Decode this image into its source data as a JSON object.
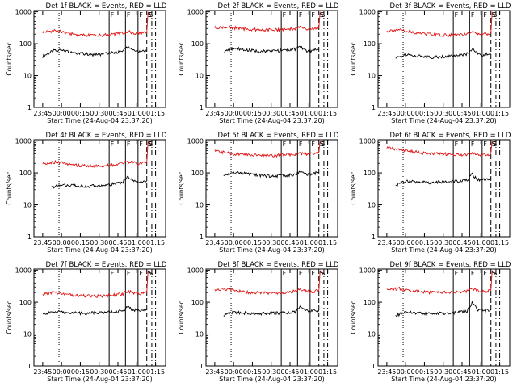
{
  "figure": {
    "background": "#ffffff",
    "plot_background": "#ffffff",
    "ink": "#000000",
    "events_color": "#000000",
    "lld_color": "#e01010"
  },
  "panel_labels": {
    "ylabel": "Counts/sec",
    "xlabel": "Start Time (24-Aug-04 23:37:20)",
    "marker_F": "F",
    "marker_S": "S",
    "marker_S_overlay": "S"
  },
  "chart_data": [
    {
      "type": "line",
      "title": "Det 1f BLACK = Events, RED = LLD",
      "xlabel": "Start Time (24-Aug-04 23:37:20)",
      "ylabel": "Counts/sec",
      "x_ticks": [
        "23:45",
        "00:00",
        "00:15",
        "00:30",
        "00:45",
        "01:00",
        "01:15"
      ],
      "xlim_min": [
        -7,
        98
      ],
      "y_scale": "log",
      "y_ticks": [
        "1",
        "10",
        "100",
        "1000"
      ],
      "ylim": [
        1,
        1100
      ],
      "markers": {
        "dotted_min": 13,
        "F_min": [
          53,
          66,
          76
        ],
        "S_min": 83,
        "dash_min": [
          87,
          90,
          98
        ]
      },
      "series": [
        {
          "name": "Events",
          "color": "#000000",
          "t_min": [
            0,
            10,
            20,
            30,
            40,
            50,
            55,
            60,
            64,
            68,
            72,
            76,
            80,
            83
          ],
          "values": [
            40,
            62,
            58,
            50,
            46,
            48,
            52,
            55,
            60,
            85,
            65,
            55,
            58,
            60
          ]
        },
        {
          "name": "LLD",
          "color": "#e01010",
          "t_min": [
            0,
            10,
            20,
            30,
            40,
            50,
            55,
            60,
            64,
            68,
            72,
            76,
            80,
            83,
            84
          ],
          "values": [
            230,
            260,
            210,
            190,
            185,
            190,
            200,
            210,
            215,
            240,
            220,
            210,
            215,
            220,
            1000
          ]
        }
      ]
    },
    {
      "type": "line",
      "title": "Det 2f BLACK = Events, RED = LLD",
      "xlabel": "Start Time (24-Aug-04 23:37:20)",
      "ylabel": "Counts/sec",
      "x_ticks": [
        "23:45",
        "00:00",
        "00:15",
        "00:30",
        "00:45",
        "01:00",
        "01:15"
      ],
      "xlim_min": [
        -7,
        98
      ],
      "y_scale": "log",
      "y_ticks": [
        "1",
        "10",
        "100",
        "1000"
      ],
      "ylim": [
        1,
        1100
      ],
      "markers": {
        "dotted_min": 13,
        "F_min": [
          53,
          66,
          76
        ],
        "S_min": 83,
        "dash_min": [
          87,
          90,
          98
        ]
      },
      "series": [
        {
          "name": "Events",
          "color": "#000000",
          "t_min": [
            7,
            15,
            25,
            35,
            45,
            55,
            60,
            64,
            68,
            72,
            76,
            80,
            83
          ],
          "values": [
            55,
            72,
            65,
            58,
            60,
            62,
            66,
            68,
            78,
            62,
            60,
            64,
            66
          ]
        },
        {
          "name": "LLD",
          "color": "#e01010",
          "t_min": [
            0,
            10,
            20,
            30,
            40,
            50,
            55,
            60,
            64,
            68,
            72,
            76,
            80,
            83,
            84
          ],
          "values": [
            320,
            340,
            300,
            280,
            270,
            275,
            285,
            290,
            300,
            320,
            300,
            290,
            300,
            310,
            1000
          ]
        }
      ]
    },
    {
      "type": "line",
      "title": "Det 3f BLACK = Events, RED = LLD",
      "xlabel": "Start Time (24-Aug-04 23:37:20)",
      "ylabel": "Counts/sec",
      "x_ticks": [
        "23:45",
        "00:00",
        "00:15",
        "00:30",
        "00:45",
        "01:00",
        "01:15"
      ],
      "xlim_min": [
        -7,
        98
      ],
      "y_scale": "log",
      "y_ticks": [
        "1",
        "10",
        "100",
        "1000"
      ],
      "ylim": [
        1,
        1100
      ],
      "markers": {
        "dotted_min": 13,
        "F_min": [
          53,
          66,
          76
        ],
        "S_min": 83,
        "dash_min": [
          87,
          90,
          98
        ]
      },
      "series": [
        {
          "name": "Events",
          "color": "#000000",
          "t_min": [
            7,
            15,
            25,
            35,
            45,
            55,
            60,
            64,
            68,
            72,
            76,
            80,
            83
          ],
          "values": [
            35,
            45,
            42,
            38,
            40,
            42,
            45,
            48,
            70,
            50,
            45,
            48,
            50
          ]
        },
        {
          "name": "LLD",
          "color": "#e01010",
          "t_min": [
            0,
            10,
            20,
            30,
            40,
            50,
            55,
            60,
            64,
            68,
            72,
            76,
            80,
            83,
            84
          ],
          "values": [
            250,
            280,
            230,
            200,
            190,
            185,
            190,
            195,
            200,
            230,
            210,
            200,
            205,
            215,
            1000
          ]
        }
      ]
    },
    {
      "type": "line",
      "title": "Det 4f BLACK = Events, RED = LLD",
      "xlabel": "Start Time (24-Aug-04 23:37:20)",
      "ylabel": "Counts/sec",
      "x_ticks": [
        "23:45",
        "00:00",
        "00:15",
        "00:30",
        "00:45",
        "01:00",
        "01:15"
      ],
      "xlim_min": [
        -7,
        98
      ],
      "y_scale": "log",
      "y_ticks": [
        "1",
        "10",
        "100",
        "1000"
      ],
      "ylim": [
        1,
        1100
      ],
      "markers": {
        "dotted_min": 13,
        "F_min": [
          53,
          66,
          76
        ],
        "S_min": 83,
        "dash_min": [
          87,
          90,
          98
        ]
      },
      "series": [
        {
          "name": "Events",
          "color": "#000000",
          "t_min": [
            7,
            15,
            25,
            35,
            45,
            55,
            60,
            64,
            68,
            72,
            76,
            80,
            83
          ],
          "values": [
            35,
            42,
            40,
            38,
            40,
            44,
            48,
            52,
            80,
            55,
            50,
            52,
            55
          ]
        },
        {
          "name": "LLD",
          "color": "#e01010",
          "t_min": [
            0,
            10,
            20,
            30,
            40,
            50,
            55,
            60,
            64,
            68,
            72,
            76,
            80,
            83,
            84
          ],
          "values": [
            200,
            220,
            190,
            170,
            165,
            170,
            180,
            190,
            200,
            230,
            210,
            195,
            200,
            210,
            1000
          ]
        }
      ]
    },
    {
      "type": "line",
      "title": "Det 5f BLACK = Events, RED = LLD",
      "xlabel": "Start Time (24-Aug-04 23:37:20)",
      "ylabel": "Counts/sec",
      "x_ticks": [
        "23:45",
        "00:00",
        "00:15",
        "00:30",
        "00:45",
        "01:00",
        "01:15"
      ],
      "xlim_min": [
        -7,
        98
      ],
      "y_scale": "log",
      "y_ticks": [
        "1",
        "10",
        "100",
        "1000"
      ],
      "ylim": [
        1,
        1100
      ],
      "markers": {
        "dotted_min": 13,
        "F_min": [
          53,
          66,
          76
        ],
        "S_min": 83,
        "dash_min": [
          87,
          90,
          98
        ]
      },
      "series": [
        {
          "name": "Events",
          "color": "#000000",
          "t_min": [
            7,
            15,
            25,
            35,
            45,
            55,
            60,
            64,
            68,
            72,
            76,
            80,
            83
          ],
          "values": [
            80,
            105,
            95,
            85,
            80,
            82,
            86,
            90,
            110,
            95,
            90,
            98,
            105
          ]
        },
        {
          "name": "LLD",
          "color": "#e01010",
          "t_min": [
            0,
            10,
            20,
            30,
            40,
            50,
            55,
            60,
            64,
            68,
            72,
            76,
            80,
            83,
            84
          ],
          "values": [
            480,
            420,
            380,
            360,
            350,
            360,
            370,
            380,
            390,
            420,
            400,
            390,
            395,
            410,
            1000
          ]
        }
      ]
    },
    {
      "type": "line",
      "title": "Det 6f BLACK = Events, RED = LLD",
      "xlabel": "Start Time (24-Aug-04 23:37:20)",
      "ylabel": "Counts/sec",
      "x_ticks": [
        "23:45",
        "00:00",
        "00:15",
        "00:30",
        "00:45",
        "01:00",
        "01:15"
      ],
      "xlim_min": [
        -7,
        98
      ],
      "y_scale": "log",
      "y_ticks": [
        "1",
        "10",
        "100",
        "1000"
      ],
      "ylim": [
        1,
        1100
      ],
      "markers": {
        "dotted_min": 13,
        "F_min": [
          53,
          66,
          76
        ],
        "S_min": 83,
        "dash_min": [
          87,
          90,
          98
        ]
      },
      "series": [
        {
          "name": "Events",
          "color": "#000000",
          "t_min": [
            7,
            15,
            25,
            35,
            45,
            55,
            60,
            64,
            68,
            72,
            76,
            80,
            83
          ],
          "values": [
            40,
            55,
            52,
            50,
            52,
            55,
            58,
            60,
            90,
            65,
            60,
            62,
            68
          ]
        },
        {
          "name": "LLD",
          "color": "#e01010",
          "t_min": [
            0,
            10,
            20,
            30,
            40,
            50,
            55,
            60,
            64,
            68,
            72,
            76,
            80,
            83,
            84
          ],
          "values": [
            620,
            540,
            470,
            420,
            400,
            390,
            380,
            375,
            380,
            420,
            390,
            370,
            380,
            395,
            1000
          ]
        }
      ]
    },
    {
      "type": "line",
      "title": "Det 7f BLACK = Events, RED = LLD",
      "xlabel": "Start Time (24-Aug-04 23:37:20)",
      "ylabel": "Counts/sec",
      "x_ticks": [
        "23:45",
        "00:00",
        "00:15",
        "00:30",
        "00:45",
        "01:00",
        "01:15"
      ],
      "xlim_min": [
        -7,
        98
      ],
      "y_scale": "log",
      "y_ticks": [
        "1",
        "10",
        "100",
        "1000"
      ],
      "ylim": [
        1,
        1100
      ],
      "markers": {
        "dotted_min": 13,
        "F_min": [
          53,
          66,
          76
        ],
        "S_min": 83,
        "dash_min": [
          87,
          90,
          98
        ]
      },
      "series": [
        {
          "name": "Events",
          "color": "#000000",
          "t_min": [
            0,
            10,
            20,
            30,
            40,
            50,
            55,
            60,
            64,
            68,
            72,
            76,
            80,
            83
          ],
          "values": [
            42,
            50,
            48,
            45,
            46,
            48,
            50,
            52,
            55,
            72,
            58,
            55,
            56,
            58
          ]
        },
        {
          "name": "LLD",
          "color": "#e01010",
          "t_min": [
            0,
            10,
            20,
            30,
            40,
            50,
            55,
            60,
            64,
            68,
            72,
            76,
            80,
            83,
            84
          ],
          "values": [
            180,
            200,
            175,
            160,
            155,
            160,
            168,
            175,
            185,
            220,
            200,
            185,
            190,
            200,
            1000
          ]
        }
      ]
    },
    {
      "type": "line",
      "title": "Det 8f BLACK = Events, RED = LLD",
      "xlabel": "Start Time (24-Aug-04 23:37:20)",
      "ylabel": "Counts/sec",
      "x_ticks": [
        "23:45",
        "00:00",
        "00:15",
        "00:30",
        "00:45",
        "01:00",
        "01:15"
      ],
      "xlim_min": [
        -7,
        98
      ],
      "y_scale": "log",
      "y_ticks": [
        "1",
        "10",
        "100",
        "1000"
      ],
      "ylim": [
        1,
        1100
      ],
      "markers": {
        "dotted_min": 13,
        "F_min": [
          53,
          66,
          76
        ],
        "S_min": 83,
        "dash_min": [
          87,
          90,
          98
        ]
      },
      "series": [
        {
          "name": "Events",
          "color": "#000000",
          "t_min": [
            7,
            15,
            25,
            35,
            45,
            55,
            60,
            64,
            68,
            72,
            76,
            80,
            83
          ],
          "values": [
            40,
            48,
            46,
            44,
            45,
            46,
            48,
            50,
            70,
            55,
            52,
            54,
            56
          ]
        },
        {
          "name": "LLD",
          "color": "#e01010",
          "t_min": [
            0,
            10,
            20,
            30,
            40,
            50,
            55,
            60,
            64,
            68,
            72,
            76,
            80,
            83,
            84
          ],
          "values": [
            240,
            260,
            220,
            200,
            195,
            200,
            205,
            210,
            220,
            250,
            230,
            215,
            220,
            230,
            1000
          ]
        }
      ]
    },
    {
      "type": "line",
      "title": "Det 9f BLACK = Events, RED = LLD",
      "xlabel": "Start Time (24-Aug-04 23:37:20)",
      "ylabel": "Counts/sec",
      "x_ticks": [
        "23:45",
        "00:00",
        "00:15",
        "00:30",
        "00:45",
        "01:00",
        "01:15"
      ],
      "xlim_min": [
        -7,
        98
      ],
      "y_scale": "log",
      "y_ticks": [
        "1",
        "10",
        "100",
        "1000"
      ],
      "ylim": [
        1,
        1100
      ],
      "markers": {
        "dotted_min": 13,
        "F_min": [
          53,
          66,
          76
        ],
        "S_min": 83,
        "dash_min": [
          87,
          90,
          98
        ]
      },
      "series": [
        {
          "name": "Events",
          "color": "#000000",
          "t_min": [
            7,
            15,
            25,
            35,
            45,
            55,
            60,
            64,
            68,
            72,
            76,
            80,
            83
          ],
          "values": [
            38,
            48,
            46,
            44,
            45,
            47,
            50,
            52,
            95,
            60,
            55,
            57,
            60
          ]
        },
        {
          "name": "LLD",
          "color": "#e01010",
          "t_min": [
            0,
            10,
            20,
            30,
            40,
            50,
            55,
            60,
            64,
            68,
            72,
            76,
            80,
            83,
            84
          ],
          "values": [
            250,
            270,
            230,
            210,
            200,
            205,
            210,
            215,
            225,
            260,
            235,
            220,
            225,
            235,
            1000
          ]
        }
      ]
    }
  ]
}
